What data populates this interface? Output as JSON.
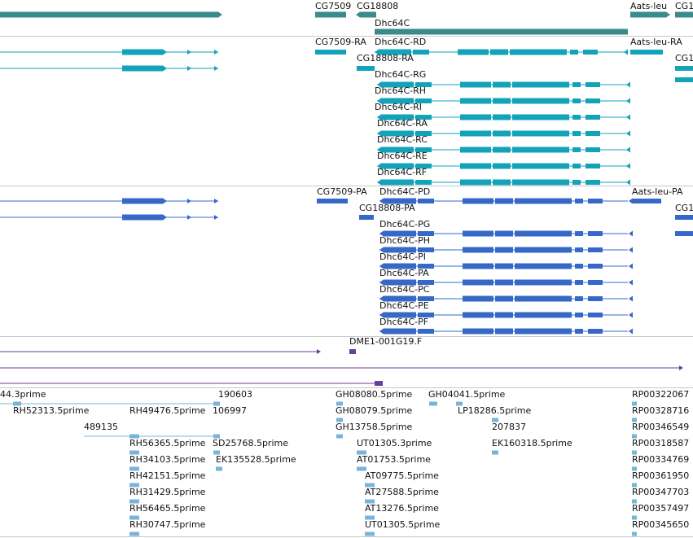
{
  "colors": {
    "gene": "#3a8c8c",
    "mrna": "#12a3b8",
    "protein": "#3668c8",
    "clone": "#6a3f99",
    "est": "#78b4d8",
    "divider": "#c8c8c8"
  },
  "tracks": [
    {
      "name": "gene",
      "labels": [
        {
          "text": "CG7509",
          "name": "label-cg7509"
        },
        {
          "text": "CG18808",
          "name": "label-cg18808"
        },
        {
          "text": "Dhc64C",
          "name": "label-dhc64c"
        },
        {
          "text": "Aats-leu",
          "name": "label-aats-leu"
        },
        {
          "text": "CG1",
          "name": "label-cg1-gene"
        }
      ]
    },
    {
      "name": "mrna",
      "labels": [
        {
          "text": "CG7509-RA",
          "name": "label-cg7509-ra"
        },
        {
          "text": "Dhc64C-RD",
          "name": "label-dhc64c-rd"
        },
        {
          "text": "Aats-leu-RA",
          "name": "label-aats-leu-ra"
        },
        {
          "text": "CG18808-RA",
          "name": "label-cg18808-ra"
        },
        {
          "text": "CG1",
          "name": "label-cg1-mrna"
        },
        {
          "text": "Dhc64C-RG",
          "name": "label-dhc64c-rg"
        },
        {
          "text": "Dhc64C-RH",
          "name": "label-dhc64c-rh"
        },
        {
          "text": "Dhc64C-RI",
          "name": "label-dhc64c-ri"
        },
        {
          "text": "Dhc64C-RA",
          "name": "label-dhc64c-ra"
        },
        {
          "text": "Dhc64C-RC",
          "name": "label-dhc64c-rc"
        },
        {
          "text": "Dhc64C-RE",
          "name": "label-dhc64c-re"
        },
        {
          "text": "Dhc64C-RF",
          "name": "label-dhc64c-rf"
        }
      ]
    },
    {
      "name": "protein",
      "labels": [
        {
          "text": "CG7509-PA",
          "name": "label-cg7509-pa"
        },
        {
          "text": "Dhc64C-PD",
          "name": "label-dhc64c-pd"
        },
        {
          "text": "Aats-leu-PA",
          "name": "label-aats-leu-pa"
        },
        {
          "text": "CG18808-PA",
          "name": "label-cg18808-pa"
        },
        {
          "text": "CG1",
          "name": "label-cg1-protein"
        },
        {
          "text": "Dhc64C-PG",
          "name": "label-dhc64c-pg"
        },
        {
          "text": "Dhc64C-PH",
          "name": "label-dhc64c-ph"
        },
        {
          "text": "Dhc64C-PI",
          "name": "label-dhc64c-pi"
        },
        {
          "text": "Dhc64C-PA",
          "name": "label-dhc64c-pa"
        },
        {
          "text": "Dhc64C-PC",
          "name": "label-dhc64c-pc"
        },
        {
          "text": "Dhc64C-PE",
          "name": "label-dhc64c-pe"
        },
        {
          "text": "Dhc64C-PF",
          "name": "label-dhc64c-pf"
        }
      ]
    },
    {
      "name": "clone",
      "labels": [
        {
          "text": "DME1-001G19.F",
          "name": "label-dme1-001g19-f"
        }
      ]
    },
    {
      "name": "est",
      "labels": [
        {
          "text": "44.3prime",
          "name": "label-est-44-3prime"
        },
        {
          "text": "190603",
          "name": "label-est-190603"
        },
        {
          "text": "GH08080.5prime",
          "name": "label-est-gh08080"
        },
        {
          "text": "GH04041.5prime",
          "name": "label-est-gh04041"
        },
        {
          "text": "RP00322067",
          "name": "label-est-rp00322067"
        },
        {
          "text": "RH52313.5prime",
          "name": "label-est-rh52313"
        },
        {
          "text": "RH49476.5prime",
          "name": "label-est-rh49476"
        },
        {
          "text": "106997",
          "name": "label-est-106997"
        },
        {
          "text": "GH08079.5prime",
          "name": "label-est-gh08079"
        },
        {
          "text": "LP18286.5prime",
          "name": "label-est-lp18286"
        },
        {
          "text": "RP00328716",
          "name": "label-est-rp00328716"
        },
        {
          "text": "489135",
          "name": "label-est-489135"
        },
        {
          "text": "GH13758.5prime",
          "name": "label-est-gh13758"
        },
        {
          "text": "207837",
          "name": "label-est-207837"
        },
        {
          "text": "RP00346549",
          "name": "label-est-rp00346549"
        },
        {
          "text": "RH56365.5prime",
          "name": "label-est-rh56365"
        },
        {
          "text": "SD25768.5prime",
          "name": "label-est-sd25768"
        },
        {
          "text": "UT01305.3prime",
          "name": "label-est-ut01305-3"
        },
        {
          "text": "EK160318.5prime",
          "name": "label-est-ek160318"
        },
        {
          "text": "RP00318587",
          "name": "label-est-rp00318587"
        },
        {
          "text": "RH34103.5prime",
          "name": "label-est-rh34103"
        },
        {
          "text": "EK135528.5prime",
          "name": "label-est-ek135528"
        },
        {
          "text": "AT01753.5prime",
          "name": "label-est-at01753"
        },
        {
          "text": "RP00334769",
          "name": "label-est-rp00334769"
        },
        {
          "text": "RH42151.5prime",
          "name": "label-est-rh42151"
        },
        {
          "text": "AT09775.5prime",
          "name": "label-est-at09775"
        },
        {
          "text": "RP00361950",
          "name": "label-est-rp00361950"
        },
        {
          "text": "RH31429.5prime",
          "name": "label-est-rh31429"
        },
        {
          "text": "AT27588.5prime",
          "name": "label-est-at27588"
        },
        {
          "text": "RP00347703",
          "name": "label-est-rp00347703"
        },
        {
          "text": "RH56465.5prime",
          "name": "label-est-rh56465"
        },
        {
          "text": "AT13276.5prime",
          "name": "label-est-at13276"
        },
        {
          "text": "RP00357497",
          "name": "label-est-rp00357497"
        },
        {
          "text": "RH30747.5prime",
          "name": "label-est-rh30747"
        },
        {
          "text": "UT01305.5prime",
          "name": "label-est-ut01305-5"
        },
        {
          "text": "RP00345650",
          "name": "label-est-rp00345650"
        }
      ]
    }
  ]
}
